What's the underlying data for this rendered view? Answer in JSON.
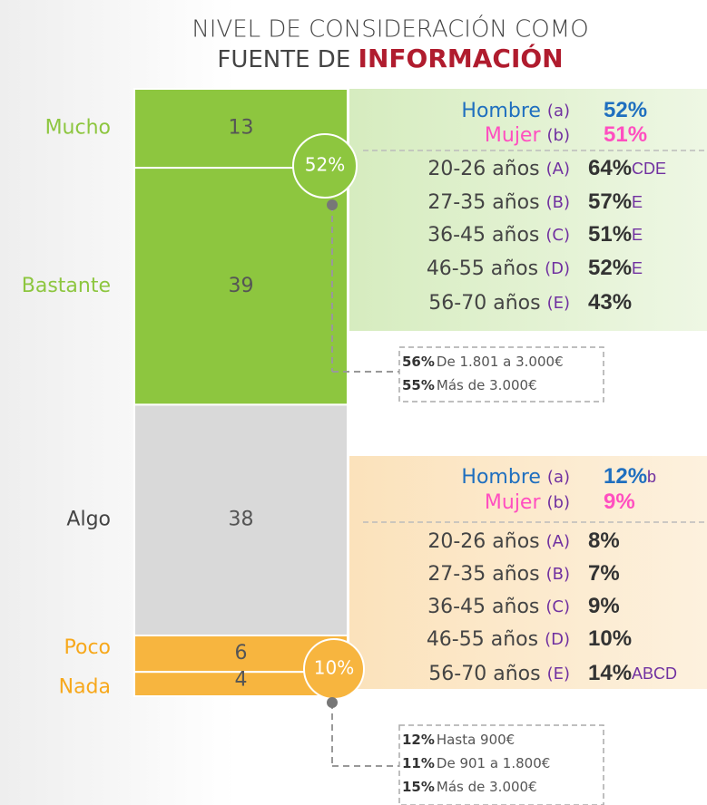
{
  "chart_data": {
    "type": "stacked_bar",
    "title_line1": "NIVEL DE CONSIDERACIÓN COMO",
    "title_line2": "FUENTE DE",
    "title_bold": "INFORMACIÓN",
    "categories": [
      "Mucho",
      "Bastante",
      "Algo",
      "Poco",
      "Nada"
    ],
    "values": [
      13,
      39,
      38,
      6,
      4
    ],
    "colors": [
      "#8dc63f",
      "#8dc63f",
      "#d9d9d9",
      "#f7b53f",
      "#f7b53f"
    ],
    "label_colors": [
      "#8dc63f",
      "#8dc63f",
      "#444444",
      "#f7a81b",
      "#f7a81b"
    ],
    "panels": [
      {
        "total": "52%",
        "color": "#8dc63f",
        "rows": [
          {
            "label": "Hombre",
            "code": "(a)",
            "value": "52%",
            "color": "#1f6fbf"
          },
          {
            "label": "Mujer",
            "code": "(b)",
            "value": "51%",
            "color": "#ff4fc0"
          },
          {
            "label": "20-26 años",
            "code": "(A)",
            "value": "64%",
            "sig": "CDE",
            "color": "#333333"
          },
          {
            "label": "27-35 años",
            "code": "(B)",
            "value": "57%",
            "sig": "E",
            "color": "#333333"
          },
          {
            "label": "36-45 años",
            "code": "(C)",
            "value": "51%",
            "sig": "E",
            "color": "#333333"
          },
          {
            "label": "46-55 años",
            "code": "(D)",
            "value": "52%",
            "sig": "E",
            "color": "#333333"
          },
          {
            "label": "56-70 años",
            "code": "(E)",
            "value": "43%",
            "color": "#333333"
          }
        ],
        "income": [
          {
            "value": "56%",
            "text": "De 1.801 a 3.000€"
          },
          {
            "value": "55%",
            "text": "Más de 3.000€"
          }
        ]
      },
      {
        "total": "10%",
        "color": "#f7b53f",
        "rows": [
          {
            "label": "Hombre",
            "code": "(a)",
            "value": "12%",
            "sig": "b",
            "color": "#1f6fbf"
          },
          {
            "label": "Mujer",
            "code": "(b)",
            "value": "9%",
            "color": "#ff4fc0"
          },
          {
            "label": "20-26 años",
            "code": "(A)",
            "value": "8%",
            "color": "#333333"
          },
          {
            "label": "27-35 años",
            "code": "(B)",
            "value": "7%",
            "color": "#333333"
          },
          {
            "label": "36-45 años",
            "code": "(C)",
            "value": "9%",
            "color": "#333333"
          },
          {
            "label": "46-55 años",
            "code": "(D)",
            "value": "10%",
            "color": "#333333"
          },
          {
            "label": "56-70 años",
            "code": "(E)",
            "value": "14%",
            "sig": "ABCD",
            "color": "#333333"
          }
        ],
        "income": [
          {
            "value": "12%",
            "text": "Hasta 900€"
          },
          {
            "value": "11%",
            "text": "De 901 a 1.800€"
          },
          {
            "value": "15%",
            "text": "Más de 3.000€"
          }
        ]
      }
    ]
  }
}
